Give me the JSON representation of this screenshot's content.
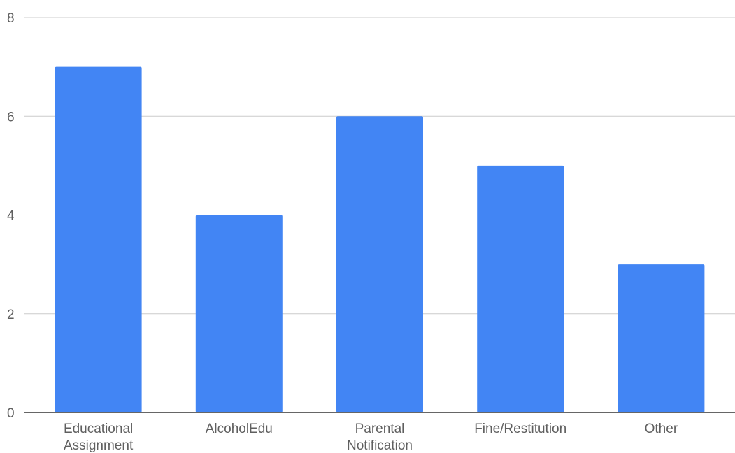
{
  "chart_data": {
    "type": "bar",
    "title": "",
    "xlabel": "",
    "ylabel": "",
    "categories": [
      "Educational Assignment",
      "AlcoholEdu",
      "Parental Notification",
      "Fine/Restitution",
      "Other"
    ],
    "category_lines": [
      [
        "Educational",
        "Assignment"
      ],
      [
        "AlcoholEdu"
      ],
      [
        "Parental",
        "Notification"
      ],
      [
        "Fine/Restitution"
      ],
      [
        "Other"
      ]
    ],
    "values": [
      7,
      4,
      6,
      5,
      3
    ],
    "ylim": [
      0,
      8
    ],
    "yticks": [
      "0",
      "2",
      "4",
      "6",
      "8"
    ],
    "grid": true,
    "legend": "none",
    "bar_color": "#4285f4",
    "grid_color": "#cccccc",
    "axis_color": "#333333"
  }
}
